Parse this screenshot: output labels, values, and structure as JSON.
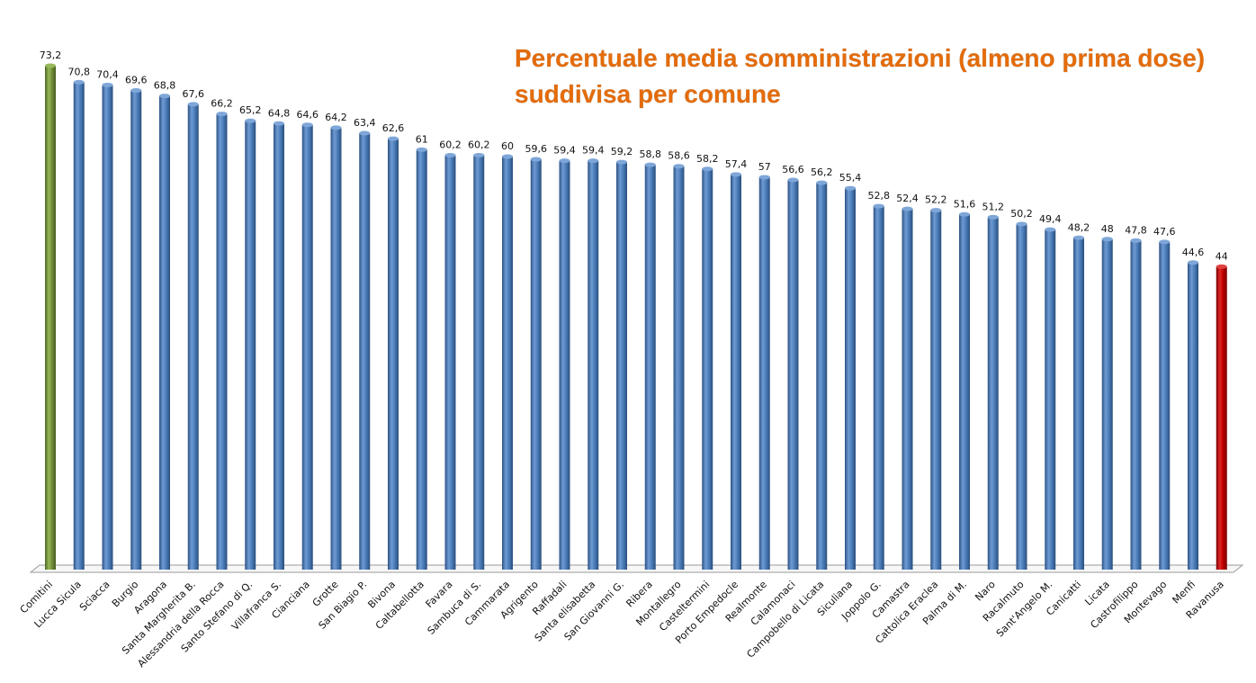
{
  "chart_data": {
    "type": "bar",
    "title_lines": [
      "Percentuale media somministrazioni (almeno prima dose)",
      "suddivisa per comune"
    ],
    "xlabel": "",
    "ylabel": "",
    "ylim": [
      0,
      75
    ],
    "grid": false,
    "legend": "none",
    "categories": [
      "Comitini",
      "Lucca Sicula",
      "Sciacca",
      "Burgio",
      "Aragona",
      "Santa Margherita B.",
      "Alessandria della Rocca",
      "Santo Stefano di Q.",
      "Villafranca S.",
      "Cianciana",
      "Grotte",
      "San Biagio P.",
      "Bivona",
      "Caltabellotta",
      "Favara",
      "Sambuca di S.",
      "Cammarata",
      "Agrigento",
      "Raffadali",
      "Santa elisabetta",
      "San Giovanni G.",
      "Ribera",
      "Montallegro",
      "Casteltermini",
      "Porto Empedocle",
      "Realmonte",
      "Calamonaci",
      "Campobello di Licata",
      "Siculiana",
      "Joppolo G.",
      "Camastra",
      "Cattolica Eraclea",
      "Palma di M.",
      "Naro",
      "Racalmuto",
      "Sant'Angelo M.",
      "Canicatti",
      "Licata",
      "Castrofilippo",
      "Montevago",
      "Menfi",
      "Ravanusa"
    ],
    "values": [
      73.2,
      70.8,
      70.4,
      69.6,
      68.8,
      67.6,
      66.2,
      65.2,
      64.8,
      64.6,
      64.2,
      63.4,
      62.6,
      61,
      60.2,
      60.2,
      60,
      59.6,
      59.4,
      59.4,
      59.2,
      58.8,
      58.6,
      58.2,
      57.4,
      57,
      56.6,
      56.2,
      55.4,
      52.8,
      52.4,
      52.2,
      51.6,
      51.2,
      50.2,
      49.4,
      48.2,
      48,
      47.8,
      47.6,
      44.6,
      44
    ],
    "value_labels": [
      "73,2",
      "70,8",
      "70,4",
      "69,6",
      "68,8",
      "67,6",
      "66,2",
      "65,2",
      "64,8",
      "64,6",
      "64,2",
      "63,4",
      "62,6",
      "61",
      "60,2",
      "60,2",
      "60",
      "59,6",
      "59,4",
      "59,4",
      "59,2",
      "58,8",
      "58,6",
      "58,2",
      "57,4",
      "57",
      "56,6",
      "56,2",
      "55,4",
      "52,8",
      "52,4",
      "52,2",
      "51,6",
      "51,2",
      "50,2",
      "49,4",
      "48,2",
      "48",
      "47,8",
      "47,6",
      "44,6",
      "44"
    ],
    "colors": {
      "default": "#4F81BD",
      "highest": "#77933C",
      "lowest": "#C00000",
      "title": "#E46C0A"
    }
  }
}
